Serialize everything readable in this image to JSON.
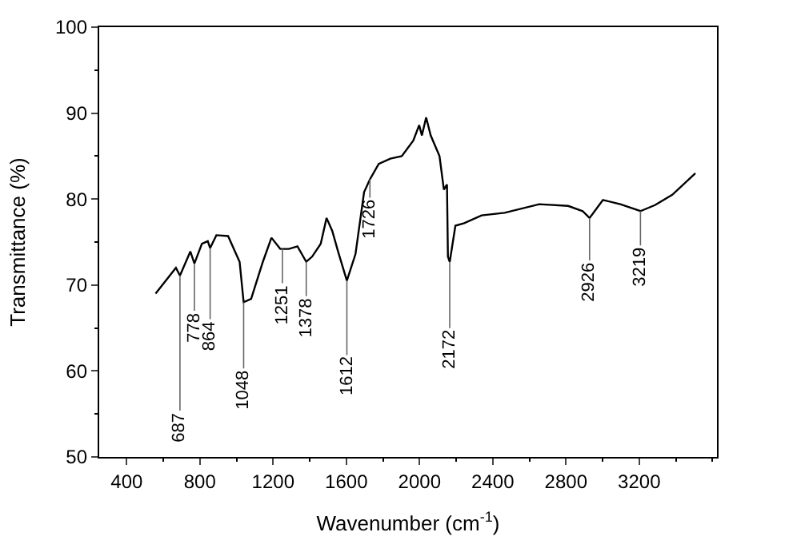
{
  "chart_data": {
    "type": "line",
    "xlabel": "Wavenumber (cm$^{-1}$)",
    "ylabel": "Transmittance (%)",
    "xlim": [
      250,
      3625
    ],
    "xticks": [
      400,
      800,
      1200,
      1600,
      2000,
      2400,
      2800,
      3200
    ],
    "ylim": [
      50,
      100
    ],
    "yticks": [
      50,
      60,
      70,
      80,
      90,
      100
    ],
    "marker": "none",
    "line_style": "solid",
    "series": [
      {
        "color": "#000000",
        "x": [
          558,
          669,
          691,
          748,
          770,
          811,
          843,
          856,
          890,
          954,
          1017,
          1039,
          1080,
          1144,
          1191,
          1239,
          1286,
          1333,
          1381,
          1413,
          1460,
          1492,
          1523,
          1555,
          1603,
          1650,
          1697,
          1729,
          1777,
          1840,
          1903,
          1966,
          1998,
          2013,
          2036,
          2061,
          2109,
          2133,
          2150,
          2155,
          2165,
          2196,
          2244,
          2339,
          2465,
          2654,
          2812,
          2891,
          2929,
          3002,
          3097,
          3207,
          3286,
          3381,
          3507
        ],
        "values": [
          69.0,
          72.0,
          71.1,
          73.9,
          72.5,
          74.8,
          75.1,
          74.3,
          75.8,
          75.7,
          72.7,
          68.0,
          68.4,
          72.7,
          75.5,
          74.2,
          74.2,
          74.5,
          72.7,
          73.3,
          74.8,
          77.8,
          76.3,
          73.9,
          70.5,
          73.6,
          80.8,
          82.3,
          84.1,
          84.7,
          85.0,
          86.8,
          88.6,
          87.4,
          89.5,
          87.4,
          85.0,
          81.1,
          81.7,
          73.3,
          72.7,
          76.9,
          77.2,
          78.1,
          78.4,
          79.4,
          79.2,
          78.6,
          77.8,
          79.9,
          79.4,
          78.6,
          79.3,
          80.5,
          83.0
        ]
      }
    ],
    "annotations": [
      {
        "text": "687",
        "x": 691,
        "y": 71.1
      },
      {
        "text": "778",
        "x": 770,
        "y": 72.5
      },
      {
        "text": "864",
        "x": 856,
        "y": 74.3
      },
      {
        "text": "1048",
        "x": 1039,
        "y": 68.0
      },
      {
        "text": "1251",
        "x": 1251,
        "y": 74.2
      },
      {
        "text": "1378",
        "x": 1381,
        "y": 72.7
      },
      {
        "text": "1612",
        "x": 1603,
        "y": 70.5
      },
      {
        "text": "1726",
        "x": 1729,
        "y": 82.3
      },
      {
        "text": "2172",
        "x": 2165,
        "y": 72.7
      },
      {
        "text": "2926",
        "x": 2929,
        "y": 77.8
      },
      {
        "text": "3219",
        "x": 3207,
        "y": 78.6
      }
    ]
  }
}
